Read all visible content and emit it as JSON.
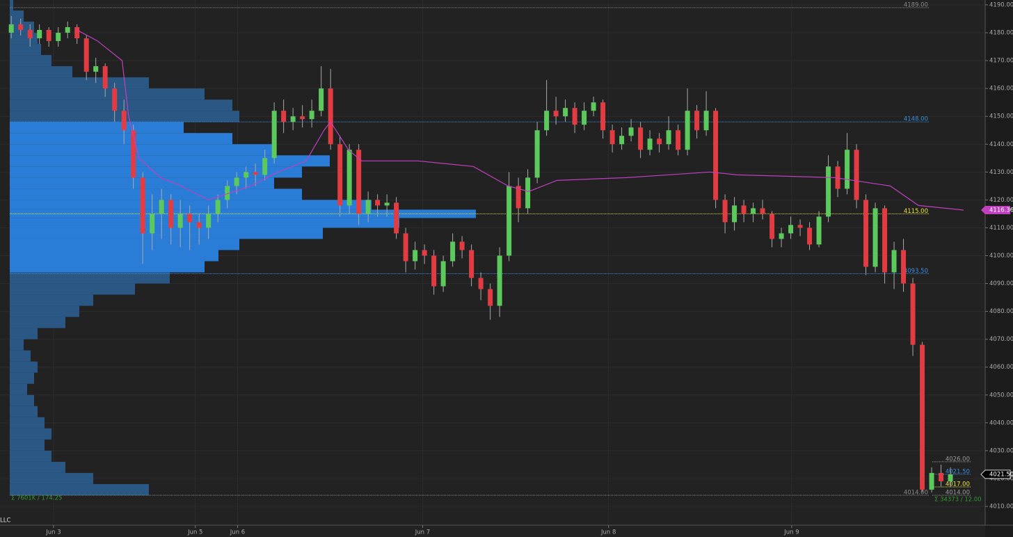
{
  "chart_data": {
    "type": "candlestick",
    "ylim": [
      4010,
      4190
    ],
    "yticks": [
      {
        "value": 4010,
        "label": "4010.00"
      },
      {
        "value": 4020,
        "label": "4020.00"
      },
      {
        "value": 4030,
        "label": "4030.00"
      },
      {
        "value": 4040,
        "label": "4040.00"
      },
      {
        "value": 4050,
        "label": "4050.00"
      },
      {
        "value": 4060,
        "label": "4060.00"
      },
      {
        "value": 4070,
        "label": "4070.00"
      },
      {
        "value": 4080,
        "label": "4080.00"
      },
      {
        "value": 4090,
        "label": "4090.00"
      },
      {
        "value": 4100,
        "label": "4100.00"
      },
      {
        "value": 4110,
        "label": "4110.00"
      },
      {
        "value": 4120,
        "label": "4120.00"
      },
      {
        "value": 4130,
        "label": "4130.00"
      },
      {
        "value": 4140,
        "label": "4140.00"
      },
      {
        "value": 4150,
        "label": "4150.00"
      },
      {
        "value": 4160,
        "label": "4160.00"
      },
      {
        "value": 4170,
        "label": "4170.00"
      },
      {
        "value": 4180,
        "label": "4180.00"
      },
      {
        "value": 4190,
        "label": "4190.00"
      }
    ],
    "xlim": [
      -1.2,
      103.7
    ],
    "xticks": [
      {
        "value": 4.5,
        "label": "Jun 3"
      },
      {
        "value": 19.6,
        "label": "Jun 5"
      },
      {
        "value": 24.1,
        "label": "Jun 6"
      },
      {
        "value": 43.8,
        "label": "Jun 7"
      },
      {
        "value": 63.6,
        "label": "Jun 8"
      },
      {
        "value": 83.1,
        "label": "Jun 9"
      }
    ],
    "grid": true,
    "up_color": "#5cc95c",
    "down_color": "#e23b41",
    "candles": [
      [
        4180,
        4186,
        4178,
        4183
      ],
      [
        4183,
        4185,
        4179,
        4181
      ],
      [
        4181,
        4183,
        4175,
        4178
      ],
      [
        4178,
        4183,
        4176,
        4181
      ],
      [
        4181,
        4182,
        4175,
        4177
      ],
      [
        4177,
        4182,
        4175,
        4180
      ],
      [
        4180,
        4184,
        4178,
        4182
      ],
      [
        4182,
        4183,
        4176,
        4178
      ],
      [
        4178,
        4179,
        4163,
        4166
      ],
      [
        4166,
        4171,
        4162,
        4168
      ],
      [
        4168,
        4169,
        4157,
        4160
      ],
      [
        4160,
        4162,
        4148,
        4152
      ],
      [
        4152,
        4156,
        4140,
        4145
      ],
      [
        4145,
        4147,
        4124,
        4128
      ],
      [
        4128,
        4130,
        4097,
        4108
      ],
      [
        4108,
        4122,
        4102,
        4115
      ],
      [
        4115,
        4124,
        4106,
        4120
      ],
      [
        4120,
        4122,
        4104,
        4110
      ],
      [
        4110,
        4120,
        4103,
        4115
      ],
      [
        4115,
        4118,
        4102,
        4112
      ],
      [
        4112,
        4115,
        4104,
        4110
      ],
      [
        4110,
        4118,
        4106,
        4115
      ],
      [
        4115,
        4122,
        4112,
        4120
      ],
      [
        4120,
        4127,
        4117,
        4125
      ],
      [
        4125,
        4130,
        4122,
        4128
      ],
      [
        4128,
        4132,
        4124,
        4130
      ],
      [
        4130,
        4133,
        4125,
        4129
      ],
      [
        4129,
        4138,
        4127,
        4135
      ],
      [
        4135,
        4155,
        4133,
        4152
      ],
      [
        4152,
        4156,
        4144,
        4148
      ],
      [
        4148,
        4153,
        4145,
        4150
      ],
      [
        4150,
        4154,
        4146,
        4149
      ],
      [
        4149,
        4156,
        4146,
        4152
      ],
      [
        4152,
        4168,
        4150,
        4160
      ],
      [
        4160,
        4167,
        4138,
        4140
      ],
      [
        4140,
        4143,
        4114,
        4118
      ],
      [
        4118,
        4140,
        4115,
        4138
      ],
      [
        4138,
        4140,
        4111,
        4115
      ],
      [
        4115,
        4123,
        4112,
        4120
      ],
      [
        4120,
        4122,
        4114,
        4118
      ],
      [
        4118,
        4122,
        4114,
        4119
      ],
      [
        4119,
        4121,
        4106,
        4108
      ],
      [
        4108,
        4110,
        4094,
        4098
      ],
      [
        4098,
        4105,
        4095,
        4102
      ],
      [
        4102,
        4104,
        4097,
        4100
      ],
      [
        4100,
        4102,
        4086,
        4089
      ],
      [
        4089,
        4100,
        4087,
        4098
      ],
      [
        4098,
        4108,
        4096,
        4105
      ],
      [
        4105,
        4107,
        4099,
        4102
      ],
      [
        4102,
        4104,
        4089,
        4092
      ],
      [
        4092,
        4094,
        4084,
        4088
      ],
      [
        4088,
        4090,
        4077,
        4082
      ],
      [
        4082,
        4103,
        4078,
        4100
      ],
      [
        4100,
        4130,
        4098,
        4125
      ],
      [
        4125,
        4128,
        4112,
        4117
      ],
      [
        4117,
        4131,
        4115,
        4128
      ],
      [
        4128,
        4148,
        4126,
        4145
      ],
      [
        4145,
        4163,
        4143,
        4152
      ],
      [
        4152,
        4157,
        4147,
        4150
      ],
      [
        4150,
        4156,
        4148,
        4153
      ],
      [
        4153,
        4155,
        4144,
        4147
      ],
      [
        4147,
        4155,
        4145,
        4152
      ],
      [
        4152,
        4157,
        4150,
        4155
      ],
      [
        4155,
        4156,
        4142,
        4145
      ],
      [
        4145,
        4147,
        4137,
        4140
      ],
      [
        4140,
        4146,
        4138,
        4143
      ],
      [
        4143,
        4149,
        4141,
        4146
      ],
      [
        4146,
        4148,
        4135,
        4138
      ],
      [
        4138,
        4145,
        4136,
        4142
      ],
      [
        4142,
        4144,
        4137,
        4140
      ],
      [
        4140,
        4150,
        4138,
        4145
      ],
      [
        4145,
        4147,
        4136,
        4138
      ],
      [
        4138,
        4160,
        4136,
        4152
      ],
      [
        4152,
        4154,
        4142,
        4145
      ],
      [
        4145,
        4159,
        4143,
        4152
      ],
      [
        4152,
        4153,
        4117,
        4120
      ],
      [
        4120,
        4122,
        4108,
        4112
      ],
      [
        4112,
        4121,
        4109,
        4118
      ],
      [
        4118,
        4120,
        4112,
        4115
      ],
      [
        4115,
        4119,
        4112,
        4117
      ],
      [
        4117,
        4120,
        4113,
        4115
      ],
      [
        4115,
        4116,
        4103,
        4106
      ],
      [
        4106,
        4110,
        4103,
        4108
      ],
      [
        4108,
        4114,
        4106,
        4111
      ],
      [
        4111,
        4113,
        4107,
        4110
      ],
      [
        4110,
        4112,
        4102,
        4104
      ],
      [
        4104,
        4116,
        4103,
        4114
      ],
      [
        4114,
        4136,
        4112,
        4132
      ],
      [
        4132,
        4134,
        4121,
        4124
      ],
      [
        4124,
        4144,
        4122,
        4138
      ],
      [
        4138,
        4140,
        4117,
        4120
      ],
      [
        4120,
        4122,
        4093,
        4096
      ],
      [
        4096,
        4119,
        4094,
        4117
      ],
      [
        4117,
        4118,
        4090,
        4094
      ],
      [
        4094,
        4105,
        4088,
        4102
      ],
      [
        4102,
        4106,
        4087,
        4090
      ],
      [
        4090,
        4092,
        4064,
        4068
      ],
      [
        4068,
        4069,
        4015,
        4016
      ],
      [
        4016,
        4024,
        4015,
        4022
      ],
      [
        4022,
        4025,
        4017,
        4019
      ],
      [
        4019,
        4024,
        4017,
        4021.5
      ]
    ],
    "vwap": {
      "color": "#c040c0",
      "x": [
        7,
        9.2,
        11.8,
        12.5,
        13.6,
        15.9,
        18.1,
        21,
        25.5,
        28.4,
        31.4,
        33.3,
        34,
        35.9,
        37.3,
        43.3,
        49.2,
        52.9,
        55.1,
        58.1,
        65.5,
        74.4,
        77.3,
        87.7,
        93.6,
        96.6,
        101.4
      ],
      "values": [
        4181,
        4177,
        4170,
        4150,
        4135,
        4128,
        4125,
        4120,
        4125,
        4130,
        4134,
        4145,
        4148,
        4138,
        4134,
        4134,
        4132,
        4125,
        4123,
        4127,
        4128,
        4130,
        4129,
        4128,
        4125,
        4118,
        4116.36
      ]
    },
    "last_price": {
      "value": 4021.5,
      "label": "4021.50"
    },
    "levels": [
      {
        "value": 4189,
        "label": "4189.00",
        "color": "#8a8a8a"
      },
      {
        "value": 4148,
        "label": "4148.00",
        "color": "#3a8ee0"
      },
      {
        "value": 4115,
        "label": "4115.00",
        "color": "#e8e83a"
      },
      {
        "value": 4093.5,
        "label": "4093.50",
        "color": "#3a8ee0"
      },
      {
        "value": 4014,
        "label": "4014.00",
        "color": "#8a8a8a"
      }
    ],
    "session_levels": [
      {
        "value": 4026,
        "label": "4026.00",
        "color": "#9a9a9a"
      },
      {
        "value": 4021.5,
        "label": "4021.50",
        "color": "#3a8ee0"
      },
      {
        "value": 4017,
        "label": "4017.00",
        "color": "#e8e83a"
      },
      {
        "value": 4014,
        "label": "4014.00",
        "color": "#9a9a9a"
      }
    ],
    "profile": {
      "xlim": [
        0,
        800
      ],
      "inside_color": "#2a7dd6",
      "outside_color": "#2b5784",
      "prices": [
        4190,
        4186,
        4182,
        4178,
        4174,
        4170,
        4166,
        4162,
        4158,
        4154,
        4150,
        4146,
        4142,
        4138,
        4134,
        4130,
        4126,
        4122,
        4118,
        4115,
        4112,
        4108,
        4104,
        4100,
        4096,
        4092,
        4088,
        4084,
        4080,
        4076,
        4072,
        4068,
        4064,
        4060,
        4056,
        4052,
        4048,
        4044,
        4040,
        4036,
        4032,
        4028,
        4024,
        4020,
        4016
      ],
      "volumes": [
        5,
        20,
        35,
        40,
        45,
        60,
        90,
        200,
        280,
        320,
        330,
        250,
        320,
        380,
        460,
        420,
        380,
        420,
        520,
        670,
        560,
        450,
        330,
        300,
        280,
        230,
        180,
        120,
        100,
        80,
        40,
        20,
        30,
        40,
        35,
        25,
        35,
        40,
        50,
        60,
        50,
        60,
        80,
        120,
        200
      ]
    },
    "footer_left": "Σ 7601K / 174.25",
    "footer_right": "Σ 34373 / 12.00",
    "corner_text": "LLC"
  }
}
